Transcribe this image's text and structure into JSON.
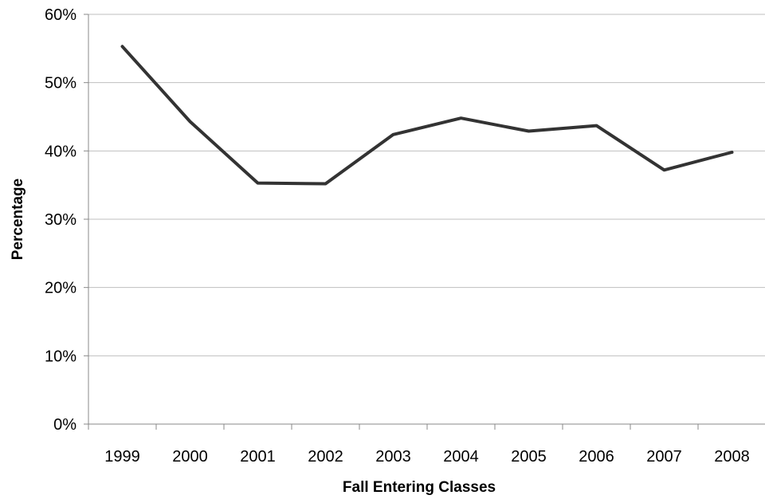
{
  "chart_data": {
    "type": "line",
    "title": "",
    "xlabel": "Fall Entering Classes",
    "ylabel": "Percentage",
    "categories": [
      "1999",
      "2000",
      "2001",
      "2002",
      "2003",
      "2004",
      "2005",
      "2006",
      "2007",
      "2008"
    ],
    "series": [
      {
        "values": [
          55.3,
          44.3,
          35.3,
          35.2,
          42.4,
          44.8,
          42.9,
          43.7,
          37.2,
          39.8
        ]
      }
    ],
    "ylim": [
      0,
      60
    ],
    "yticks": [
      0,
      10,
      20,
      30,
      40,
      50,
      60
    ],
    "ytick_labels": [
      "0%",
      "10%",
      "20%",
      "30%",
      "40%",
      "50%",
      "60%"
    ],
    "grid": true,
    "legend": "none",
    "colors": {
      "line": "#333333",
      "grid": "#bfbfbf",
      "axis": "#888888"
    }
  }
}
